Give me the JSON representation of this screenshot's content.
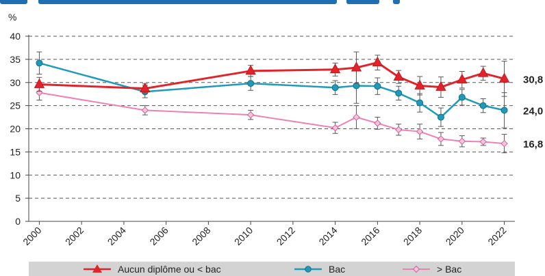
{
  "chart_data": {
    "type": "line",
    "title": "",
    "ylabel": "%",
    "xlabel": "",
    "ylim": [
      0,
      40
    ],
    "xlim": [
      1999.5,
      2022.5
    ],
    "yticks": [
      "0",
      "5",
      "10",
      "15",
      "20",
      "25",
      "30",
      "35",
      "40"
    ],
    "xticks": [
      "2000",
      "2002",
      "2004",
      "2006",
      "2008",
      "2010",
      "2012",
      "2014",
      "2016",
      "2018",
      "2020",
      "2022"
    ],
    "grid": "horizontal dashed",
    "legend_position": "bottom",
    "series": [
      {
        "name": "Aucun diplôme ou < bac",
        "color": "#e1232a",
        "marker": "triangle",
        "end_label": "30,8",
        "x": [
          2000,
          2005,
          2010,
          2014,
          2015,
          2016,
          2017,
          2018,
          2019,
          2020,
          2021,
          2022
        ],
        "values": [
          29.6,
          28.7,
          32.5,
          32.8,
          33.2,
          34.3,
          31.2,
          29.3,
          29.0,
          30.6,
          32.0,
          30.8
        ],
        "err": [
          1.5,
          1.0,
          1.2,
          1.4,
          3.4,
          1.6,
          1.4,
          2.0,
          2.2,
          1.8,
          1.5,
          3.8
        ]
      },
      {
        "name": "Bac",
        "color": "#1f9ab8",
        "marker": "circle",
        "end_label": "24,0",
        "x": [
          2000,
          2005,
          2010,
          2014,
          2015,
          2016,
          2017,
          2018,
          2019,
          2020,
          2021,
          2022
        ],
        "values": [
          34.2,
          28.0,
          29.8,
          28.9,
          29.3,
          29.2,
          27.7,
          25.6,
          22.5,
          26.8,
          25.0,
          24.0
        ],
        "err": [
          2.4,
          1.3,
          1.5,
          1.5,
          3.8,
          1.8,
          1.5,
          2.0,
          2.0,
          1.7,
          1.5,
          3.8
        ]
      },
      {
        "name": "> Bac",
        "color": "#ee80b4",
        "marker": "diamond",
        "end_label": "16,8",
        "x": [
          2000,
          2005,
          2010,
          2014,
          2015,
          2016,
          2017,
          2018,
          2019,
          2020,
          2021,
          2022
        ],
        "values": [
          27.8,
          24.0,
          23.0,
          20.2,
          22.5,
          21.2,
          19.8,
          19.4,
          17.8,
          17.3,
          17.2,
          16.8
        ],
        "err": [
          1.6,
          1.0,
          1.0,
          1.2,
          2.5,
          1.3,
          1.2,
          1.6,
          1.4,
          1.2,
          0.8,
          2.0
        ]
      }
    ]
  }
}
